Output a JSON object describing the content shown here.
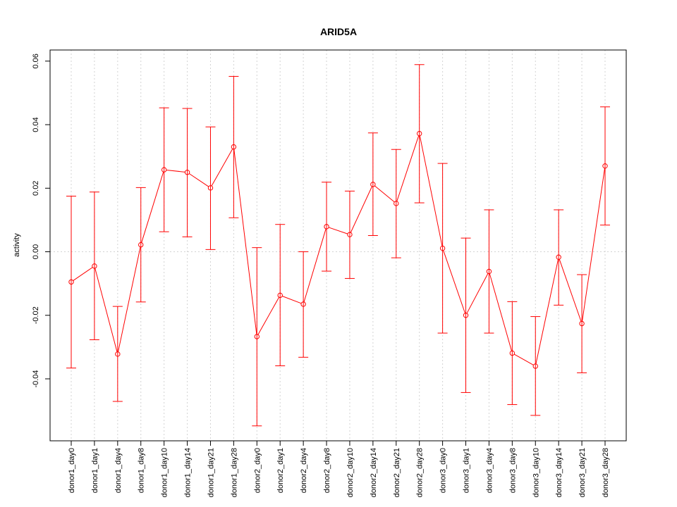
{
  "chart_data": {
    "type": "line",
    "title": "ARID5A",
    "xlabel": "",
    "ylabel": "activity",
    "grid": true,
    "ylim": [
      -0.0595,
      0.0635
    ],
    "yticks": [
      -0.04,
      -0.02,
      0.0,
      0.02,
      0.04,
      0.06
    ],
    "ytick_labels": [
      "-0.04",
      "-0.02",
      "0.00",
      "0.02",
      "0.04",
      "0.06"
    ],
    "line_color": "#ff0000",
    "grid_color": "#d3d3d3",
    "categories": [
      "donor1_day0",
      "donor1_day1",
      "donor1_day4",
      "donor1_day8",
      "donor1_day10",
      "donor1_day14",
      "donor1_day21",
      "donor1_day28",
      "donor2_day0",
      "donor2_day1",
      "donor2_day4",
      "donor2_day8",
      "donor2_day10",
      "donor2_day14",
      "donor2_day21",
      "donor2_day28",
      "donor3_day0",
      "donor3_day1",
      "donor3_day4",
      "donor3_day8",
      "donor3_day10",
      "donor3_day14",
      "donor3_day21",
      "donor3_day28"
    ],
    "series": [
      {
        "values": [
          -0.0095,
          -0.0045,
          -0.0322,
          0.0022,
          0.0258,
          0.025,
          0.0201,
          0.033,
          -0.0267,
          -0.0137,
          -0.0165,
          0.0079,
          0.0054,
          0.0212,
          0.0152,
          0.0372,
          0.0011,
          -0.02,
          -0.0062,
          -0.0319,
          -0.036,
          -0.0017,
          -0.0226,
          0.027
        ],
        "upper": [
          0.0175,
          0.0188,
          -0.0172,
          0.0202,
          0.0453,
          0.0451,
          0.0393,
          0.0552,
          0.0013,
          0.0086,
          0.0,
          0.0219,
          0.0191,
          0.0374,
          0.0322,
          0.0589,
          0.0278,
          0.0043,
          0.0132,
          -0.0157,
          -0.0204,
          0.0132,
          -0.0072,
          0.0456
        ],
        "lower": [
          -0.0366,
          -0.0277,
          -0.0471,
          -0.0158,
          0.0063,
          0.0047,
          0.0007,
          0.0107,
          -0.0548,
          -0.0359,
          -0.0332,
          -0.0061,
          -0.0084,
          0.0051,
          -0.0019,
          0.0154,
          -0.0256,
          -0.0443,
          -0.0256,
          -0.0481,
          -0.0515,
          -0.0168,
          -0.0381,
          0.0084
        ]
      }
    ]
  }
}
